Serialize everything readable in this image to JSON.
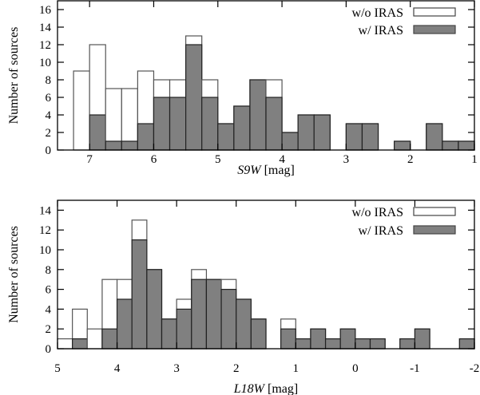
{
  "colors": {
    "wo_iras": "#ffffff",
    "w_iras": "#808080",
    "outline": "#222222"
  },
  "chart_data": [
    {
      "type": "bar",
      "stacked": true,
      "xlabel_italic": "S9W",
      "xlabel_unit": "[mag]",
      "ylabel": "Number of sources",
      "xlim": [
        7.5,
        1
      ],
      "ylim": [
        0,
        17
      ],
      "bin_width": 0.25,
      "xticks": [
        7,
        6,
        5,
        4,
        3,
        2,
        1
      ],
      "yticks": [
        0,
        2,
        4,
        6,
        8,
        10,
        12,
        14,
        16
      ],
      "legend": {
        "placement": "top-right",
        "entries": [
          "w/o IRAS",
          "w/ IRAS"
        ]
      },
      "bin_starts": [
        7.5,
        7.25,
        7.0,
        6.75,
        6.5,
        6.25,
        6.0,
        5.75,
        5.5,
        5.25,
        5.0,
        4.75,
        4.5,
        4.25,
        4.0,
        3.75,
        3.5,
        3.25,
        3.0,
        2.75,
        2.5,
        2.25,
        2.0,
        1.75,
        1.5,
        1.25
      ],
      "series": [
        {
          "name": "w/ IRAS",
          "values": [
            0,
            0,
            4,
            1,
            1,
            3,
            6,
            6,
            12,
            6,
            3,
            5,
            8,
            6,
            2,
            4,
            4,
            0,
            3,
            3,
            0,
            1,
            0,
            3,
            1,
            1
          ]
        },
        {
          "name": "w/o IRAS",
          "values": [
            0,
            9,
            8,
            6,
            6,
            6,
            2,
            2,
            1,
            2,
            0,
            0,
            0,
            2,
            0,
            0,
            0,
            0,
            0,
            0,
            0,
            0,
            0,
            0,
            0,
            0
          ]
        }
      ]
    },
    {
      "type": "bar",
      "stacked": true,
      "xlabel_italic": "L18W",
      "xlabel_unit": "[mag]",
      "ylabel": "Number of sources",
      "xlim": [
        5,
        -2
      ],
      "ylim": [
        0,
        15
      ],
      "bin_width": 0.25,
      "xticks": [
        5,
        4,
        3,
        2,
        1,
        0,
        -1,
        -2
      ],
      "yticks": [
        0,
        2,
        4,
        6,
        8,
        10,
        12,
        14
      ],
      "legend": {
        "placement": "top-right",
        "entries": [
          "w/o IRAS",
          "w/ IRAS"
        ]
      },
      "bin_starts": [
        5.0,
        4.75,
        4.5,
        4.25,
        4.0,
        3.75,
        3.5,
        3.25,
        3.0,
        2.75,
        2.5,
        2.25,
        2.0,
        1.75,
        1.5,
        1.25,
        1.0,
        0.75,
        0.5,
        0.25,
        0.0,
        -0.25,
        -0.5,
        -0.75,
        -1.0,
        -1.25,
        -1.5,
        -1.75
      ],
      "series": [
        {
          "name": "w/ IRAS",
          "values": [
            0,
            1,
            0,
            2,
            5,
            11,
            8,
            3,
            4,
            7,
            7,
            6,
            5,
            3,
            0,
            2,
            1,
            2,
            1,
            2,
            1,
            1,
            0,
            1,
            2,
            0,
            0,
            1
          ]
        },
        {
          "name": "w/o IRAS",
          "values": [
            1,
            3,
            2,
            5,
            2,
            2,
            0,
            0,
            1,
            1,
            0,
            1,
            0,
            0,
            0,
            1,
            0,
            0,
            0,
            0,
            0,
            0,
            0,
            0,
            0,
            0,
            0,
            0
          ]
        }
      ]
    }
  ]
}
